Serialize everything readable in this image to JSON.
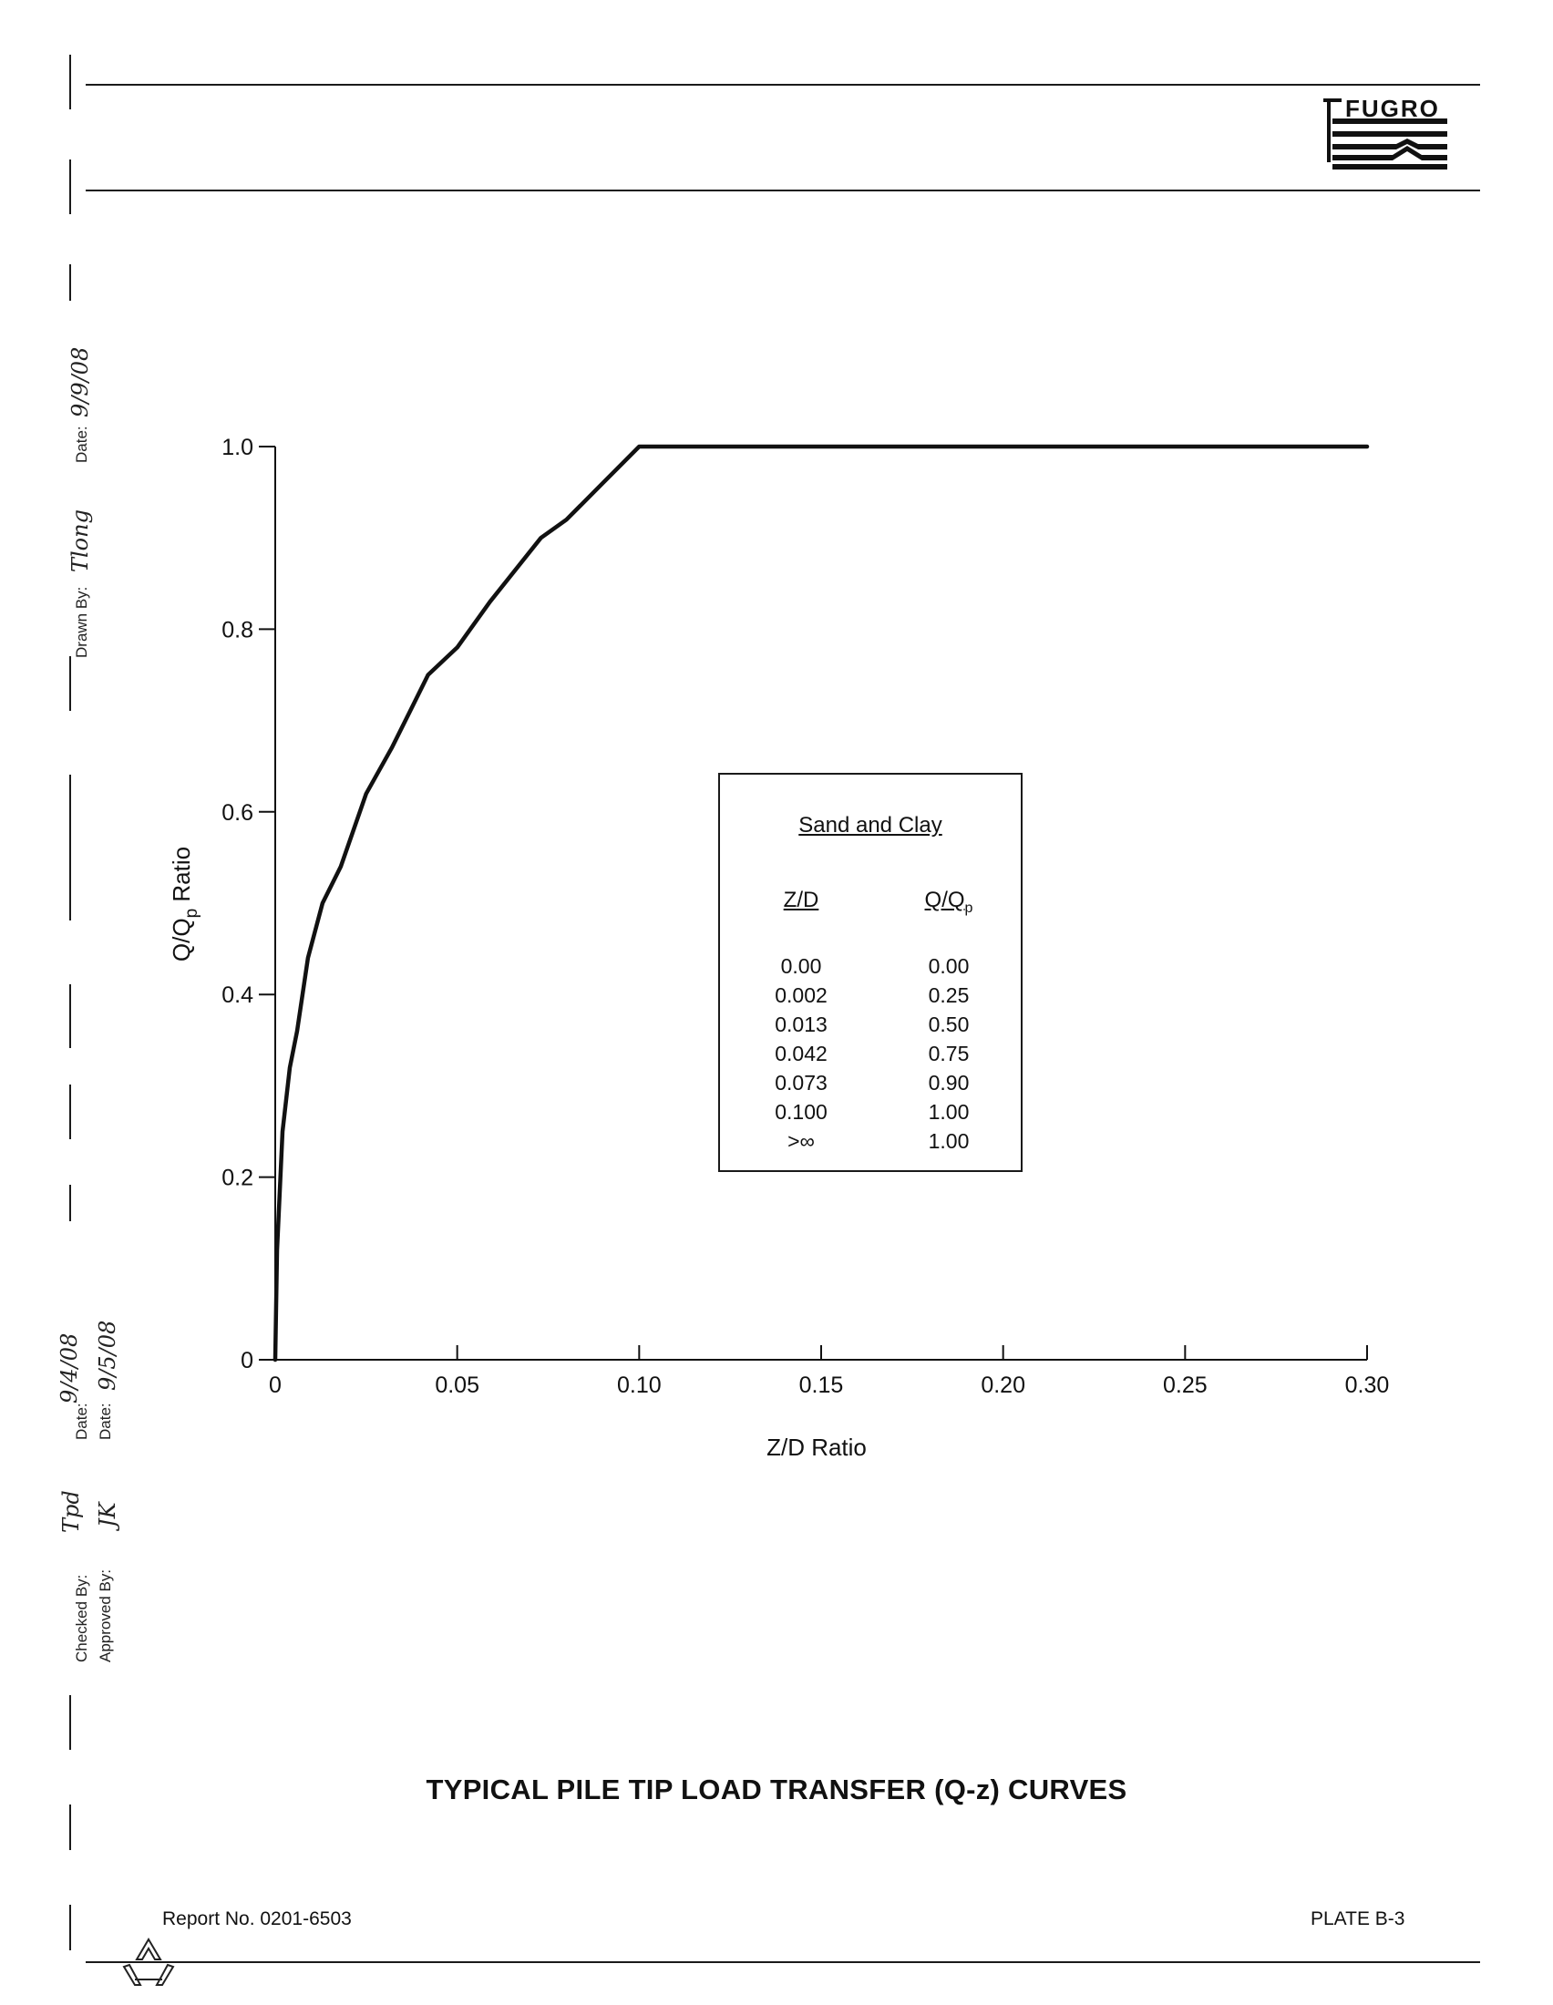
{
  "header": {
    "logo_text": "FUGRO"
  },
  "sidebar": {
    "drawn_by_label": "Drawn By:",
    "drawn_by_value": "Tlong",
    "date_label_1": "Date:",
    "date_value_1": "9/9/08",
    "date_label_2": "Date:",
    "date_value_2": "9/4/08",
    "date_label_3": "Date:",
    "date_value_3": "9/5/08",
    "checked_by_label": "Checked By:",
    "checked_by_value": "Tpd",
    "approved_by_label": "Approved By:",
    "approved_by_value": "JK"
  },
  "chart_data": {
    "type": "line",
    "title": "",
    "xlabel": "Z/D Ratio",
    "ylabel": "Q/Qp Ratio",
    "xlim": [
      0,
      0.3
    ],
    "ylim": [
      0,
      1.0
    ],
    "x_ticks": [
      0,
      0.05,
      0.1,
      0.15,
      0.2,
      0.25,
      0.3
    ],
    "x_tick_labels": [
      "0",
      "0.05",
      "0.10",
      "0.15",
      "0.20",
      "0.25",
      "0.30"
    ],
    "y_ticks": [
      0,
      0.2,
      0.4,
      0.6,
      0.8,
      1.0
    ],
    "y_tick_labels": [
      "0",
      "0.2",
      "0.4",
      "0.6",
      "0.8",
      "1.0"
    ],
    "grid": false,
    "series": [
      {
        "name": "Sand and Clay",
        "color": "#111111",
        "x": [
          0.0,
          0.0005,
          0.002,
          0.004,
          0.006,
          0.009,
          0.013,
          0.018,
          0.025,
          0.032,
          0.037,
          0.042,
          0.05,
          0.059,
          0.073,
          0.08,
          0.09,
          0.1,
          0.3
        ],
        "y": [
          0.0,
          0.12,
          0.25,
          0.32,
          0.36,
          0.44,
          0.5,
          0.54,
          0.62,
          0.67,
          0.71,
          0.75,
          0.78,
          0.83,
          0.9,
          0.92,
          0.96,
          1.0,
          1.0
        ]
      }
    ],
    "legend": {
      "title": "Sand and Clay",
      "col_headers": [
        "Z/D",
        "Q/Qp"
      ],
      "zd": [
        "0.00",
        "0.002",
        "0.013",
        "0.042",
        "0.073",
        "0.100",
        ">∞"
      ],
      "qqp": [
        "0.00",
        "0.25",
        "0.50",
        "0.75",
        "0.90",
        "1.00",
        "1.00"
      ],
      "placement": "center-right"
    }
  },
  "labels": {
    "ylabel_main": "Q/Q",
    "ylabel_sub": "p",
    "ylabel_tail": " Ratio",
    "xlabel": "Z/D Ratio",
    "legend_zd_head": "Z/D",
    "legend_qqp_main": "Q/Q",
    "legend_qqp_sub": "p"
  },
  "footer": {
    "plate_title": "TYPICAL PILE TIP LOAD TRANSFER (Q-z) CURVES",
    "report_no": "Report No. 0201-6503",
    "plate": "PLATE B-3"
  }
}
